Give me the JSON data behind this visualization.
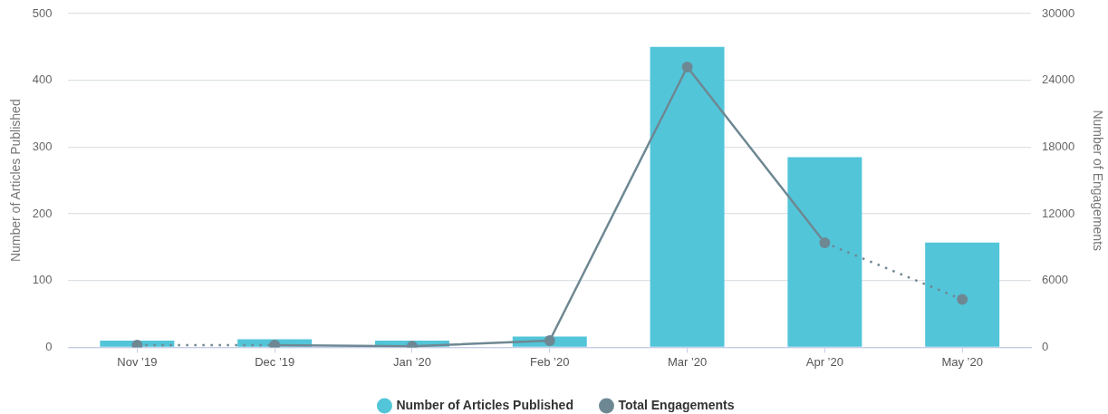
{
  "chart_data": {
    "type": "bar",
    "categories": [
      "Nov ’19",
      "Dec ’19",
      "Jan ’20",
      "Feb ’20",
      "Mar ’20",
      "Apr ’20",
      "May ’20"
    ],
    "series": [
      {
        "name": "Number of Articles Published",
        "color": "#52c5d9",
        "values": [
          10,
          12,
          10,
          16,
          450,
          285,
          157
        ]
      },
      {
        "name": "Total Engagements",
        "type": "line",
        "axis": "y2",
        "color": "#6e8893",
        "line_style": "solid",
        "marker": "circle",
        "values": [
          null,
          200,
          100,
          600,
          25200,
          9400,
          null
        ]
      },
      {
        "type": "line",
        "axis": "y2",
        "color": "#6e8893",
        "line_style": "dotted",
        "marker": "circle",
        "values": [
          200,
          200,
          null,
          null,
          null,
          9400,
          4300
        ]
      }
    ],
    "ylabel": "Number of Articles Published",
    "y2label": "Number of Engagements",
    "ylim": [
      0,
      500
    ],
    "yticks": [
      0,
      100,
      200,
      300,
      400,
      500
    ],
    "y2lim": [
      0,
      30000
    ],
    "y2ticks": [
      0,
      6000,
      12000,
      18000,
      24000,
      30000
    ],
    "grid": "y",
    "legend": "bottom"
  }
}
